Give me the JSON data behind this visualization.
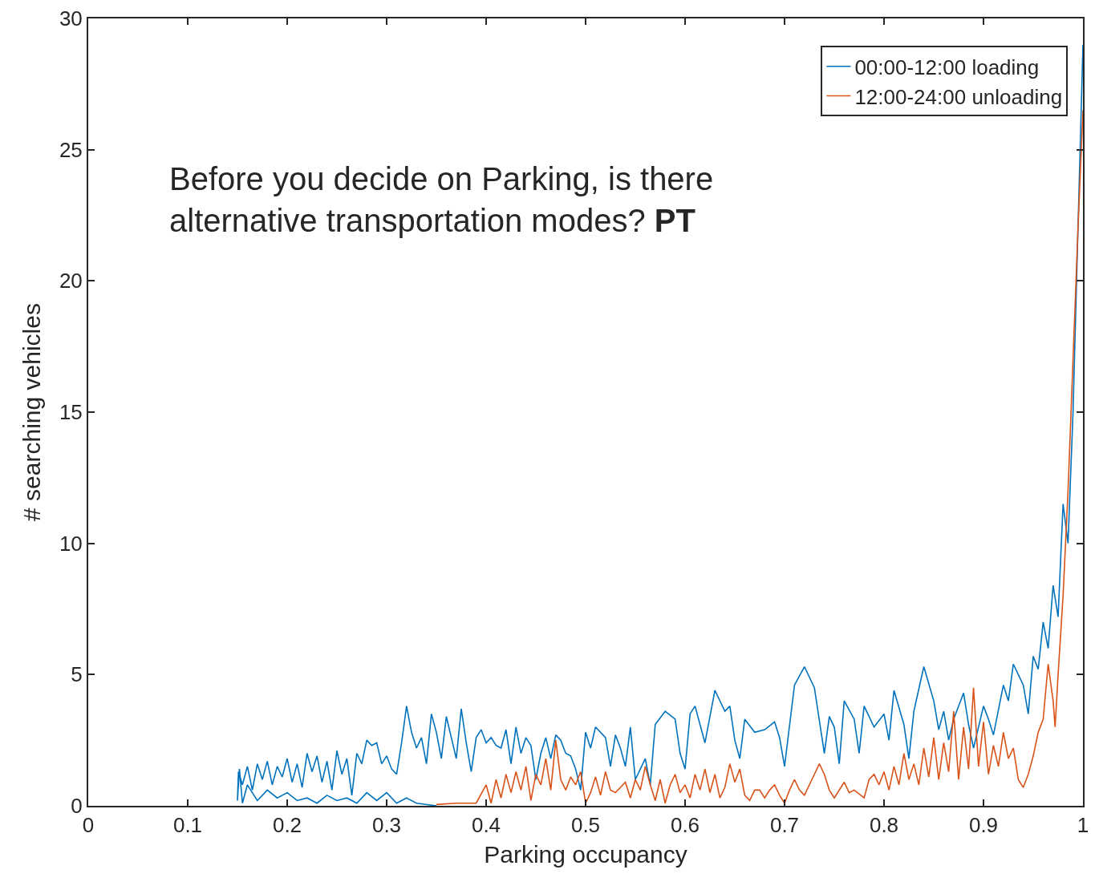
{
  "chart_data": {
    "type": "line",
    "xlabel": "Parking occupancy",
    "ylabel": "# searching vehicles",
    "xlim": [
      0,
      1
    ],
    "ylim": [
      0,
      30
    ],
    "xticks": [
      0,
      0.1,
      0.2,
      0.3,
      0.4,
      0.5,
      0.6,
      0.7,
      0.8,
      0.9,
      1
    ],
    "yticks": [
      0,
      5,
      10,
      15,
      20,
      25,
      30
    ],
    "legend": "top right",
    "marker": "none",
    "line_style": "solid",
    "annotations": [
      "Before you decide on Parking, is there\nalternative transportation modes?",
      "PT"
    ],
    "series": [
      {
        "name": "00:00-12:00 loading",
        "color": "#0072bd",
        "x": [
          0.35,
          0.33,
          0.32,
          0.31,
          0.3,
          0.29,
          0.28,
          0.27,
          0.26,
          0.25,
          0.24,
          0.23,
          0.22,
          0.21,
          0.2,
          0.19,
          0.18,
          0.17,
          0.16,
          0.155,
          0.152,
          0.15,
          0.151,
          0.155,
          0.16,
          0.165,
          0.17,
          0.175,
          0.18,
          0.185,
          0.19,
          0.195,
          0.2,
          0.205,
          0.21,
          0.215,
          0.22,
          0.225,
          0.23,
          0.235,
          0.24,
          0.245,
          0.25,
          0.255,
          0.26,
          0.265,
          0.27,
          0.275,
          0.28,
          0.285,
          0.29,
          0.295,
          0.3,
          0.305,
          0.31,
          0.315,
          0.32,
          0.325,
          0.33,
          0.335,
          0.34,
          0.345,
          0.35,
          0.355,
          0.36,
          0.365,
          0.37,
          0.375,
          0.38,
          0.385,
          0.39,
          0.395,
          0.4,
          0.405,
          0.41,
          0.415,
          0.42,
          0.425,
          0.43,
          0.435,
          0.44,
          0.445,
          0.45,
          0.455,
          0.46,
          0.465,
          0.47,
          0.475,
          0.48,
          0.485,
          0.49,
          0.495,
          0.5,
          0.505,
          0.51,
          0.52,
          0.525,
          0.53,
          0.535,
          0.54,
          0.545,
          0.55,
          0.56,
          0.565,
          0.57,
          0.58,
          0.59,
          0.595,
          0.6,
          0.605,
          0.61,
          0.62,
          0.63,
          0.64,
          0.645,
          0.65,
          0.655,
          0.66,
          0.67,
          0.68,
          0.69,
          0.695,
          0.7,
          0.71,
          0.72,
          0.73,
          0.74,
          0.745,
          0.75,
          0.755,
          0.76,
          0.77,
          0.775,
          0.78,
          0.79,
          0.8,
          0.805,
          0.81,
          0.82,
          0.825,
          0.83,
          0.84,
          0.85,
          0.855,
          0.86,
          0.865,
          0.87,
          0.88,
          0.885,
          0.89,
          0.9,
          0.905,
          0.91,
          0.92,
          0.925,
          0.93,
          0.94,
          0.945,
          0.95,
          0.955,
          0.96,
          0.965,
          0.97,
          0.975,
          0.98,
          0.985,
          0.99,
          0.995,
          1.0
        ],
        "values": [
          0,
          0.1,
          0.3,
          0.1,
          0.5,
          0.2,
          0.5,
          0.1,
          0.3,
          0.2,
          0.4,
          0.1,
          0.3,
          0.2,
          0.5,
          0.3,
          0.6,
          0.2,
          0.8,
          0.1,
          1.4,
          0.2,
          1.3,
          0.8,
          1.5,
          0.6,
          1.6,
          1.0,
          1.7,
          0.8,
          1.5,
          1.1,
          1.8,
          0.9,
          1.6,
          0.7,
          2.0,
          1.3,
          1.9,
          0.9,
          1.7,
          0.6,
          2.1,
          1.2,
          1.8,
          0.4,
          2.0,
          1.6,
          2.5,
          2.3,
          2.4,
          1.6,
          1.9,
          1.4,
          1.2,
          2.4,
          3.8,
          2.8,
          2.2,
          2.6,
          1.6,
          3.5,
          2.8,
          1.8,
          3.4,
          2.6,
          1.8,
          3.7,
          2.4,
          1.3,
          2.6,
          2.9,
          2.4,
          2.6,
          2.3,
          2.2,
          2.9,
          1.6,
          3.0,
          2.0,
          2.6,
          2.3,
          1.0,
          2.0,
          2.6,
          1.8,
          2.7,
          2.5,
          2.0,
          1.9,
          1.4,
          0.6,
          2.8,
          2.2,
          3.0,
          2.6,
          1.5,
          2.7,
          2.2,
          1.5,
          3.0,
          1.0,
          1.8,
          0.8,
          3.1,
          3.6,
          3.3,
          2.0,
          1.4,
          3.5,
          3.8,
          2.4,
          4.4,
          3.6,
          3.8,
          2.5,
          1.8,
          3.3,
          2.8,
          2.9,
          3.2,
          2.6,
          1.5,
          4.6,
          5.3,
          4.5,
          2.0,
          3.4,
          3.0,
          1.6,
          4.0,
          3.3,
          2.0,
          3.8,
          3.0,
          3.5,
          2.5,
          4.4,
          3.1,
          1.8,
          3.6,
          5.3,
          4.0,
          2.9,
          3.6,
          2.5,
          3.3,
          4.3,
          3.1,
          2.2,
          3.8,
          3.3,
          2.7,
          4.6,
          4.0,
          5.4,
          4.6,
          3.5,
          5.7,
          5.2,
          7.0,
          6.0,
          8.4,
          7.2,
          11.5,
          10.0,
          15.0,
          22.0,
          29.0
        ]
      },
      {
        "name": "12:00-24:00 unloading",
        "color": "#d95319",
        "x": [
          0.35,
          0.37,
          0.39,
          0.4,
          0.405,
          0.41,
          0.415,
          0.42,
          0.425,
          0.43,
          0.435,
          0.44,
          0.445,
          0.45,
          0.455,
          0.46,
          0.465,
          0.47,
          0.475,
          0.48,
          0.485,
          0.49,
          0.495,
          0.5,
          0.505,
          0.51,
          0.515,
          0.52,
          0.525,
          0.53,
          0.54,
          0.545,
          0.55,
          0.555,
          0.56,
          0.565,
          0.57,
          0.575,
          0.58,
          0.585,
          0.59,
          0.595,
          0.6,
          0.605,
          0.61,
          0.615,
          0.62,
          0.625,
          0.63,
          0.635,
          0.64,
          0.645,
          0.65,
          0.655,
          0.66,
          0.665,
          0.67,
          0.675,
          0.68,
          0.685,
          0.69,
          0.695,
          0.7,
          0.705,
          0.71,
          0.715,
          0.72,
          0.73,
          0.735,
          0.74,
          0.745,
          0.75,
          0.76,
          0.765,
          0.77,
          0.78,
          0.785,
          0.79,
          0.795,
          0.8,
          0.805,
          0.81,
          0.815,
          0.82,
          0.825,
          0.83,
          0.835,
          0.84,
          0.845,
          0.85,
          0.855,
          0.86,
          0.865,
          0.87,
          0.875,
          0.88,
          0.885,
          0.89,
          0.895,
          0.9,
          0.905,
          0.91,
          0.915,
          0.92,
          0.925,
          0.93,
          0.935,
          0.94,
          0.945,
          0.95,
          0.955,
          0.96,
          0.965,
          0.97,
          0.972,
          0.975,
          0.98,
          0.985,
          0.99,
          0.995,
          1.0
        ],
        "values": [
          0.05,
          0.1,
          0.1,
          0.8,
          0.1,
          1.0,
          0.3,
          1.2,
          0.5,
          1.3,
          0.6,
          1.5,
          0.2,
          1.2,
          0.8,
          1.8,
          0.6,
          2.5,
          1.0,
          0.6,
          1.1,
          0.8,
          1.3,
          0.1,
          0.5,
          1.1,
          0.4,
          1.3,
          0.6,
          0.5,
          0.9,
          0.3,
          1.0,
          0.6,
          1.5,
          0.8,
          0.2,
          1.0,
          0.1,
          0.8,
          1.2,
          0.5,
          0.8,
          0.3,
          1.2,
          0.6,
          1.4,
          0.5,
          1.2,
          0.3,
          0.7,
          1.6,
          0.9,
          1.4,
          0.4,
          0.2,
          0.6,
          0.6,
          0.3,
          0.6,
          0.8,
          0.4,
          0.1,
          0.6,
          1.0,
          0.6,
          0.4,
          1.2,
          1.6,
          1.2,
          0.6,
          0.3,
          0.9,
          0.5,
          0.6,
          0.3,
          1.0,
          1.2,
          0.8,
          1.3,
          0.6,
          1.5,
          0.8,
          2.0,
          1.0,
          1.6,
          0.8,
          2.2,
          1.1,
          2.6,
          1.0,
          2.4,
          1.3,
          3.6,
          1.0,
          3.0,
          1.4,
          4.5,
          1.5,
          3.2,
          1.2,
          2.3,
          1.5,
          2.8,
          1.8,
          2.2,
          1.0,
          0.7,
          1.2,
          1.9,
          2.8,
          3.3,
          5.4,
          4.0,
          3.0,
          5.0,
          8.0,
          12.0,
          17.0,
          22.0,
          26.5
        ]
      }
    ]
  }
}
